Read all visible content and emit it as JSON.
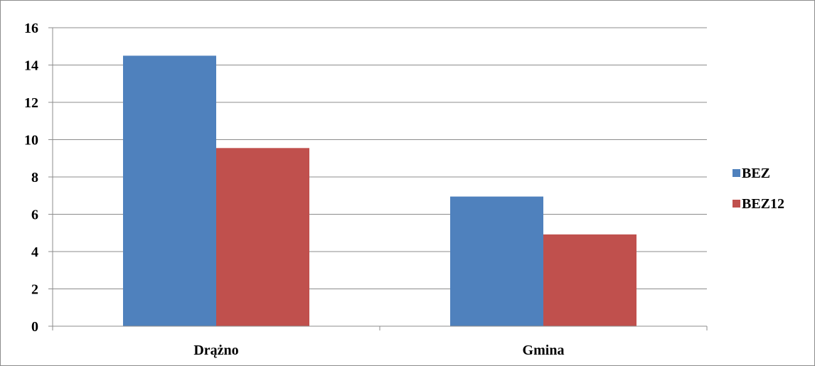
{
  "chart_data": {
    "type": "bar",
    "categories": [
      "Drążno",
      "Gmina"
    ],
    "series": [
      {
        "name": "BEZ",
        "values": [
          14.5,
          6.95
        ],
        "color": "#4F81BD"
      },
      {
        "name": "BEZ12",
        "values": [
          9.55,
          4.92
        ],
        "color": "#C0504D"
      }
    ],
    "title": "",
    "xlabel": "",
    "ylabel": "",
    "ylim": [
      0,
      16
    ],
    "yticks": [
      0,
      2,
      4,
      6,
      8,
      10,
      12,
      14,
      16
    ],
    "grid": true,
    "legend_position": "right"
  }
}
